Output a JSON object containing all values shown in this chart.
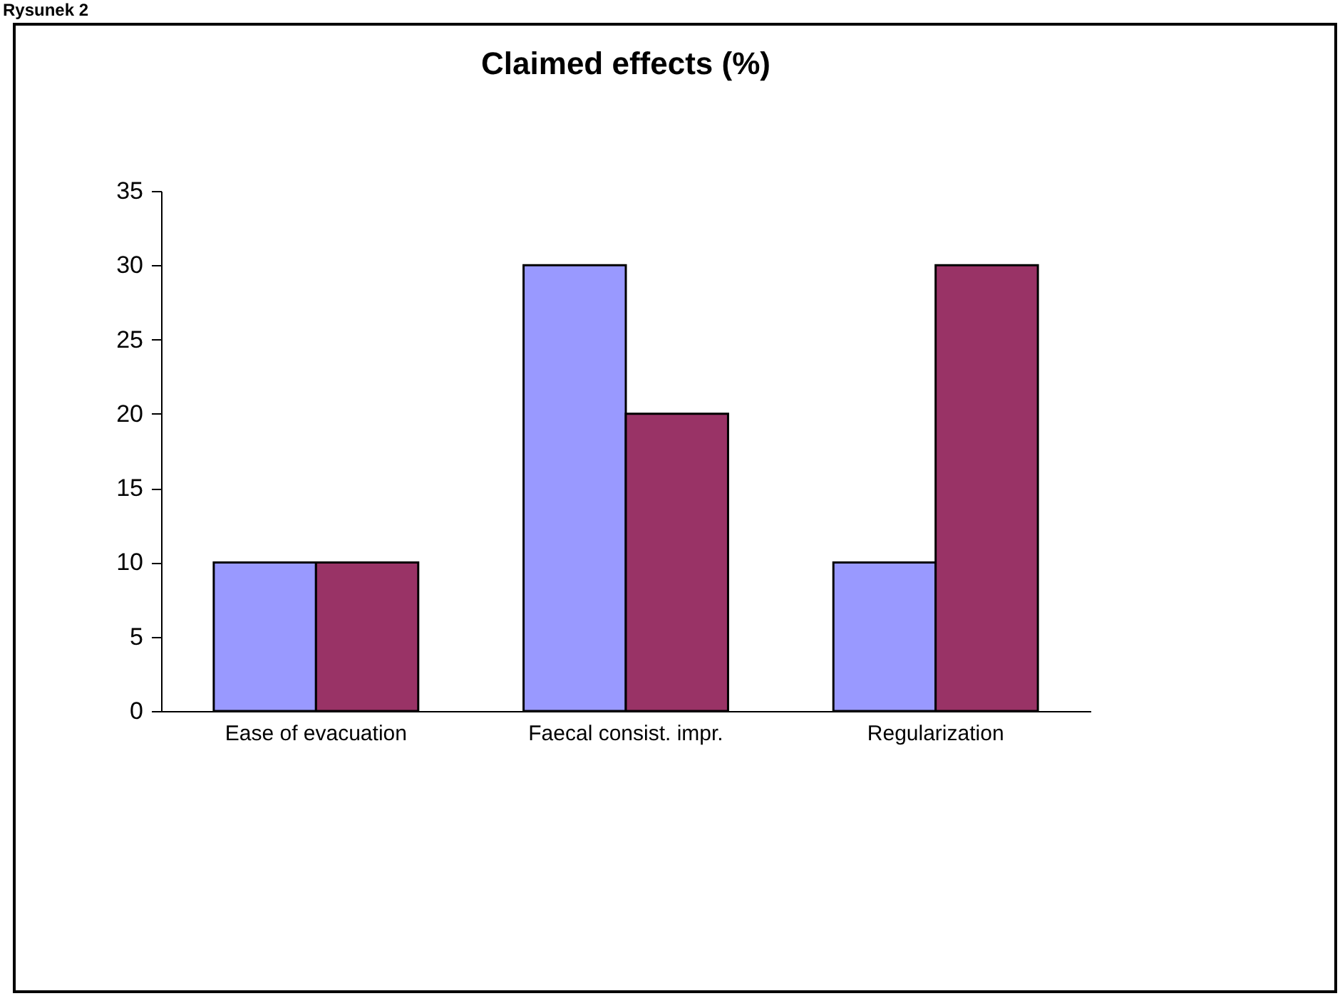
{
  "chart_data": {
    "type": "bar",
    "title": "Claimed effects (%)",
    "categories": [
      "Ease of evacuation",
      "Faecal consist. impr.",
      "Regularization"
    ],
    "series": [
      {
        "color": "#9999ff",
        "values": [
          10,
          30,
          10
        ]
      },
      {
        "color": "#993366",
        "values": [
          10,
          20,
          30
        ]
      }
    ],
    "ylim": [
      0,
      35
    ],
    "yticks": [
      0,
      5,
      10,
      15,
      20,
      25,
      30,
      35
    ],
    "grid": false,
    "legend": false,
    "annotations": [
      "Rysunek 2"
    ]
  }
}
